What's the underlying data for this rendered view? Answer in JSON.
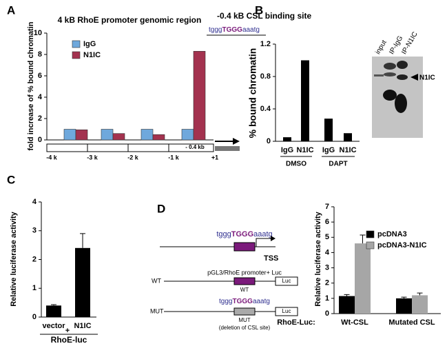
{
  "chart_data": [
    {
      "type": "bar",
      "panel": "A",
      "title": "4 kB RhoE promoter genomic region",
      "y_label": "fold increase of % bound chromatin",
      "categories": [
        null,
        null,
        null,
        null
      ],
      "series": [
        {
          "name": "IgG",
          "color": "#6fa8dc",
          "values": [
            1,
            1,
            1,
            1
          ]
        },
        {
          "name": "N1IC",
          "color": "#a3324f",
          "values": [
            0.95,
            0.6,
            0.5,
            8.3
          ]
        }
      ],
      "ylim": [
        0,
        10
      ],
      "yticks": [
        0,
        2,
        4,
        6,
        8,
        10
      ],
      "grid": false,
      "legend": "upper left",
      "map_labels": [
        "-4 k",
        "-3 k",
        "-2 k",
        "-1 k",
        "+1"
      ],
      "region_label": "- 0.4 kb"
    },
    {
      "type": "bar",
      "panel": "B",
      "title": "-0.4 kB CSL binding site",
      "site_sequence": [
        "tggg",
        "TGGG",
        "aaatg"
      ],
      "y_label": "% bound chromatin",
      "categories": [
        "IgG",
        "N1IC",
        "IgG",
        "N1IC"
      ],
      "groups": [
        "DMSO",
        "DAPT"
      ],
      "values": [
        0.05,
        1.0,
        0.28,
        0.1
      ],
      "color": "#000000",
      "ylim": [
        0,
        1.2
      ],
      "yticks": [
        0,
        0.4,
        0.8,
        1.2
      ],
      "grid": false
    },
    {
      "type": "bar",
      "panel": "C",
      "y_label": "Relative luciferase activity",
      "categories": [
        "vector",
        "N1IC"
      ],
      "values": [
        0.4,
        2.4
      ],
      "errors": [
        0.03,
        0.5
      ],
      "color": "#000000",
      "ylim": [
        0,
        4
      ],
      "yticks": [
        0,
        1,
        2,
        3,
        4
      ],
      "grid": false,
      "group_sign": "+",
      "group_label": "RhoE-luc"
    },
    {
      "type": "bar",
      "panel": "D",
      "y_label": "Relative luciferase activity",
      "x_label": "RhoE-Luc:",
      "categories": [
        "Wt-CSL",
        "Mutated CSL"
      ],
      "series": [
        {
          "name": "pcDNA3",
          "color": "#000000",
          "values": [
            1.15,
            1.0
          ],
          "errors": [
            0.1,
            0.08
          ]
        },
        {
          "name": "pcDNA3-N1IC",
          "color": "#a6a6a6",
          "values": [
            4.6,
            1.2
          ],
          "errors": [
            0.55,
            0.15
          ]
        }
      ],
      "ylim": [
        0,
        7
      ],
      "yticks": [
        0,
        1,
        2,
        3,
        4,
        5,
        6,
        7
      ],
      "grid": false,
      "legend": "upper left"
    }
  ],
  "blot": {
    "lanes": [
      "input",
      "IP-IgG",
      "IP-N1IC"
    ],
    "band_label": "N1IC"
  },
  "diagram": {
    "site_sequence": [
      "tggg",
      "TGGG",
      "aaatg"
    ],
    "tss": "TSS",
    "construct": "pGL3/RhoE promoter+ Luc",
    "rows": [
      {
        "name": "WT",
        "reporter": "Luc",
        "site_label": "WT"
      },
      {
        "name": "MUT",
        "sequence": [
          "tggg",
          "TGGG",
          "aaatg"
        ],
        "reporter": "Luc",
        "site_label": "MUT",
        "note": "(deletion of CSL site)"
      }
    ]
  }
}
